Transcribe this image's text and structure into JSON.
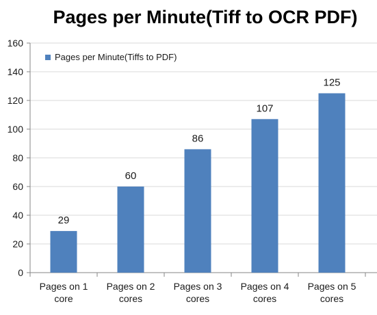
{
  "chart_data": {
    "type": "bar",
    "title": "Pages per Minute(Tiff to OCR PDF)",
    "categories": [
      "Pages on 1\ncore",
      "Pages on 2\ncores",
      "Pages on 3\ncores",
      "Pages on 4\ncores",
      "Pages on 5\ncores"
    ],
    "series": [
      {
        "name": "Pages per Minute(Tiffs to PDF)",
        "values": [
          29,
          60,
          86,
          107,
          125
        ]
      }
    ],
    "ylim": [
      0,
      160
    ],
    "yticks": [
      0,
      20,
      40,
      60,
      80,
      100,
      120,
      140,
      160
    ],
    "grid": true,
    "legend_position": "top-left",
    "data_labels": true
  },
  "colors": {
    "bar": "#4f81bd",
    "grid": "#d9d9d9",
    "axis": "#868686",
    "text": "#1a1a1a"
  }
}
